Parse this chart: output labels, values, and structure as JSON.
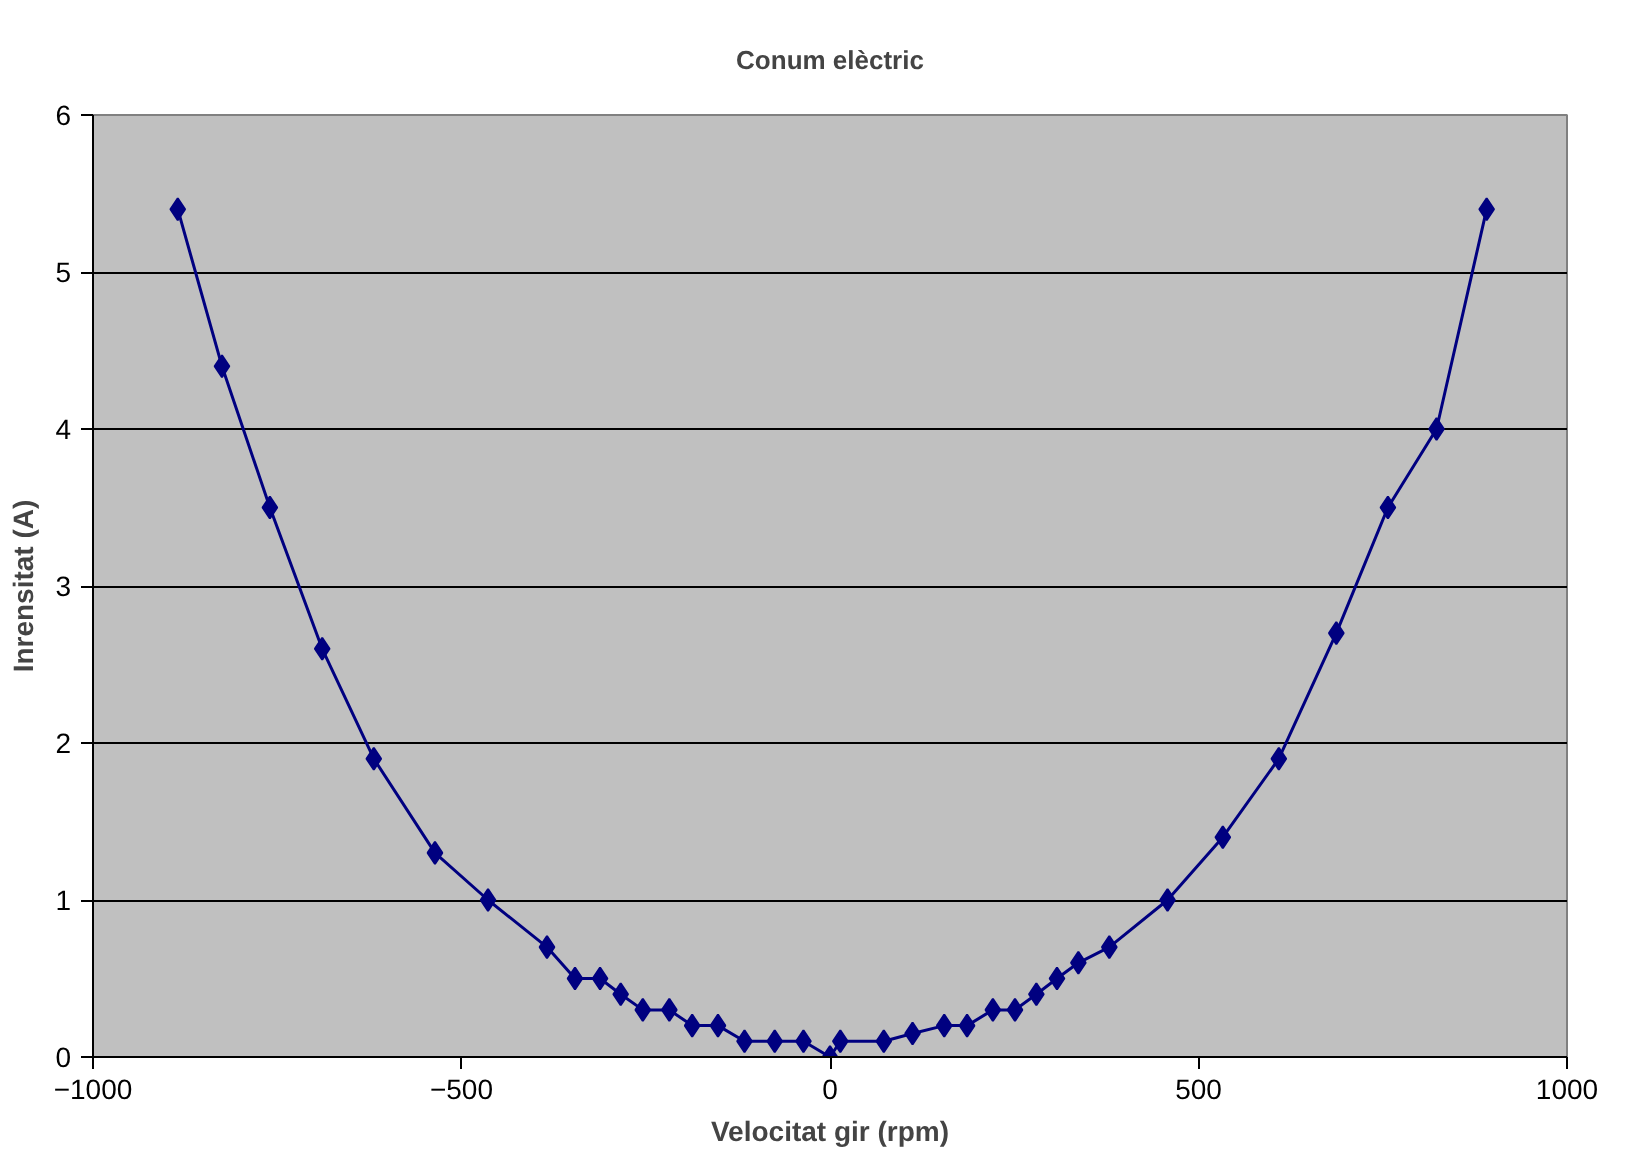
{
  "chart_data": {
    "type": "line",
    "title": "Conum elèctric",
    "xlabel": "Velocitat gir (rpm)",
    "ylabel": "Inrensitat (A)",
    "x": [
      -885,
      -825,
      -760,
      -689,
      -619,
      -536,
      -464,
      -384,
      -346,
      -312,
      -284,
      -254,
      -218,
      -187,
      -152,
      -116,
      -75,
      -36,
      0,
      14,
      73,
      112,
      155,
      186,
      221,
      251,
      280,
      308,
      337,
      379,
      458,
      533,
      609,
      687,
      757,
      823,
      891
    ],
    "series": [
      {
        "color": "#000080",
        "values": [
          5.4,
          4.4,
          3.5,
          2.6,
          1.9,
          1.3,
          1.0,
          0.7,
          0.5,
          0.5,
          0.4,
          0.3,
          0.3,
          0.2,
          0.2,
          0.1,
          0.1,
          0.1,
          0,
          0.1,
          0.1,
          0.15,
          0.2,
          0.2,
          0.3,
          0.3,
          0.4,
          0.5,
          0.6,
          0.7,
          1.0,
          1.4,
          1.9,
          2.7,
          3.5,
          4.0,
          5.4
        ]
      }
    ],
    "xlim": [
      -1000,
      1000
    ],
    "ylim": [
      0,
      6
    ],
    "xticks": [
      -1000,
      -500,
      0,
      500,
      1000
    ],
    "yticks": [
      0,
      1,
      2,
      3,
      4,
      5,
      6
    ],
    "grid": "y",
    "marker": "diamond",
    "line_style": "solid"
  }
}
